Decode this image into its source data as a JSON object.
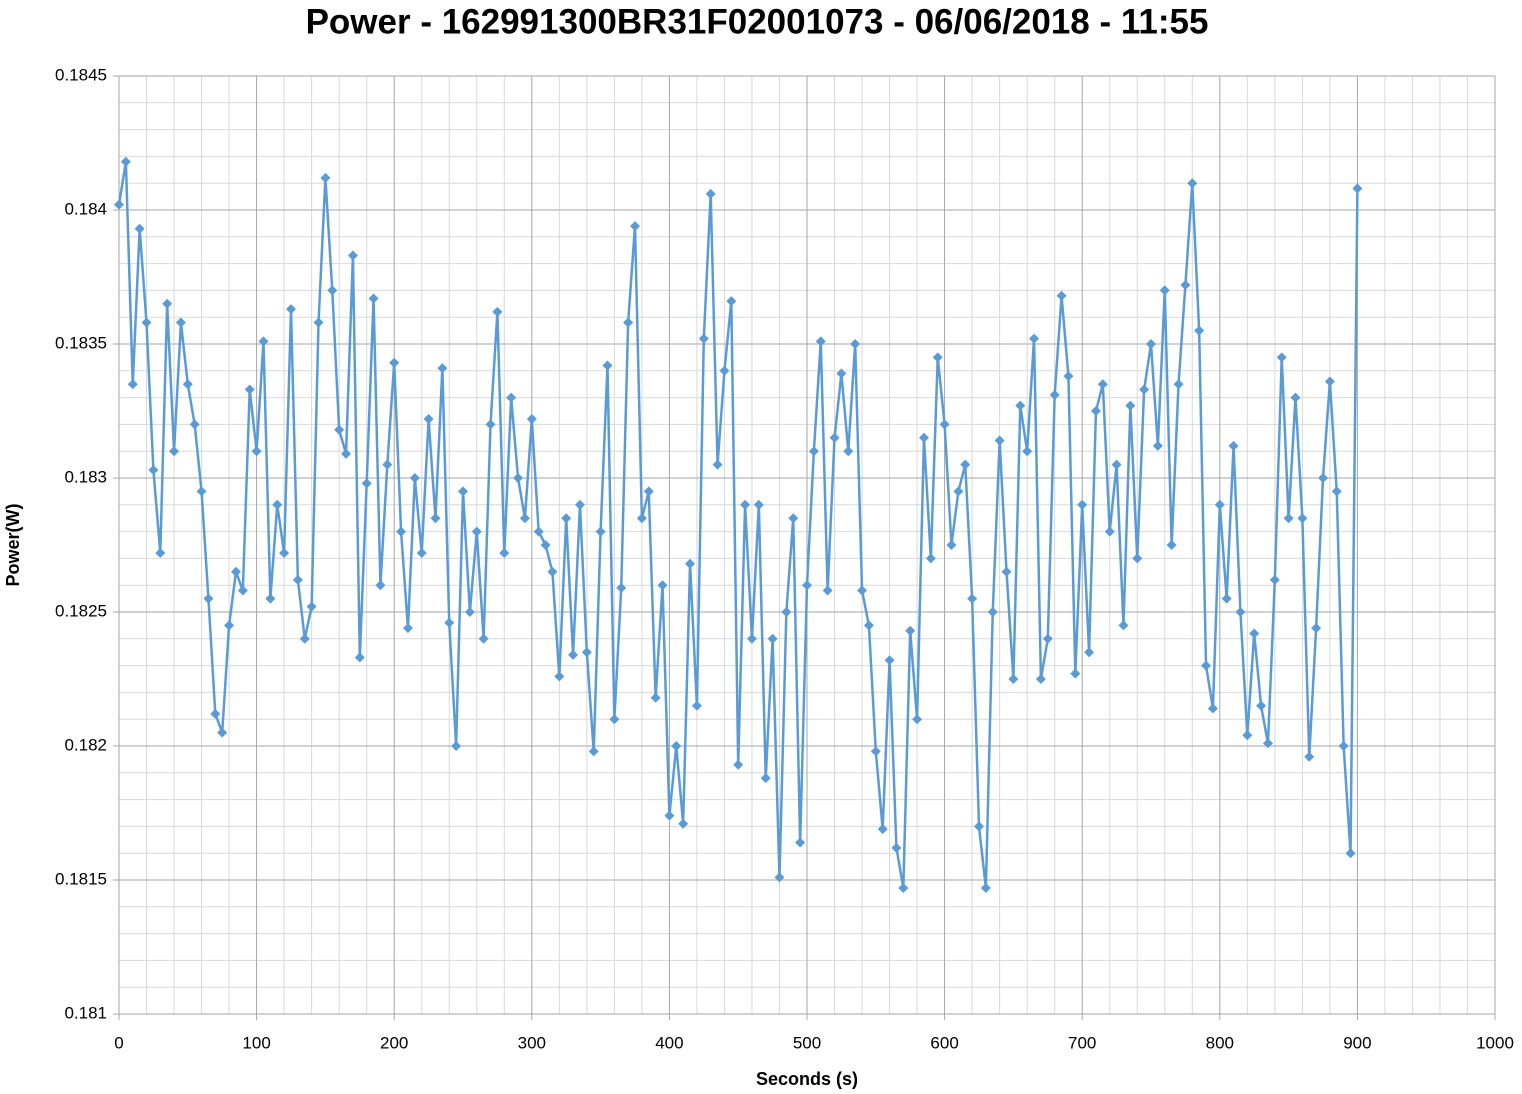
{
  "chart_data": {
    "type": "line",
    "title": "Power - 162991300BR31F02001073 - 06/06/2018 - 11:55",
    "x_label": "Seconds (s)",
    "y_label": "Power(W)",
    "xlim": [
      0,
      1000
    ],
    "xticks": [
      0,
      100,
      200,
      300,
      400,
      500,
      600,
      700,
      800,
      900,
      1000
    ],
    "ylim": [
      0.181,
      0.1845
    ],
    "yticks": [
      0.181,
      0.1815,
      0.182,
      0.1825,
      0.183,
      0.1835,
      0.184,
      0.1845
    ],
    "grid": true,
    "minor_grid": {
      "x": 5,
      "y": 5
    },
    "marker": "diamond",
    "x": [
      0,
      5,
      10,
      15,
      20,
      25,
      30,
      35,
      40,
      45,
      50,
      55,
      60,
      65,
      70,
      75,
      80,
      85,
      90,
      95,
      100,
      105,
      110,
      115,
      120,
      125,
      130,
      135,
      140,
      145,
      150,
      155,
      160,
      165,
      170,
      175,
      180,
      185,
      190,
      195,
      200,
      205,
      210,
      215,
      220,
      225,
      230,
      235,
      240,
      245,
      250,
      255,
      260,
      265,
      270,
      275,
      280,
      285,
      290,
      295,
      300,
      305,
      310,
      315,
      320,
      325,
      330,
      335,
      340,
      345,
      350,
      355,
      360,
      365,
      370,
      375,
      380,
      385,
      390,
      395,
      400,
      405,
      410,
      415,
      420,
      425,
      430,
      435,
      440,
      445,
      450,
      455,
      460,
      465,
      470,
      475,
      480,
      485,
      490,
      495,
      500,
      505,
      510,
      515,
      520,
      525,
      530,
      535,
      540,
      545,
      550,
      555,
      560,
      565,
      570,
      575,
      580,
      585,
      590,
      595,
      600,
      605,
      610,
      615,
      620,
      625,
      630,
      635,
      640,
      645,
      650,
      655,
      660,
      665,
      670,
      675,
      680,
      685,
      690,
      695,
      700,
      705,
      710,
      715,
      720,
      725,
      730,
      735,
      740,
      745,
      750,
      755,
      760,
      765,
      770,
      775,
      780,
      785,
      790,
      795,
      800,
      805,
      810,
      815,
      820,
      825,
      830,
      835,
      840,
      845,
      850,
      855,
      860,
      865,
      870,
      875,
      880,
      885,
      890,
      895,
      900
    ],
    "series": [
      {
        "name": "Power(W)",
        "color": "#5b9bd5",
        "values": [
          0.18402,
          0.18418,
          0.18335,
          0.18393,
          0.18358,
          0.18303,
          0.18272,
          0.18365,
          0.1831,
          0.18358,
          0.18335,
          0.1832,
          0.18295,
          0.18255,
          0.18212,
          0.18205,
          0.18245,
          0.18265,
          0.18258,
          0.18333,
          0.1831,
          0.18351,
          0.18255,
          0.1829,
          0.18272,
          0.18363,
          0.18262,
          0.1824,
          0.18252,
          0.18358,
          0.18412,
          0.1837,
          0.18318,
          0.18309,
          0.18383,
          0.18233,
          0.18298,
          0.18367,
          0.1826,
          0.18305,
          0.18343,
          0.1828,
          0.18244,
          0.183,
          0.18272,
          0.18322,
          0.18285,
          0.18341,
          0.18246,
          0.182,
          0.18295,
          0.1825,
          0.1828,
          0.1824,
          0.1832,
          0.18362,
          0.18272,
          0.1833,
          0.183,
          0.18285,
          0.18322,
          0.1828,
          0.18275,
          0.18265,
          0.18226,
          0.18285,
          0.18234,
          0.1829,
          0.18235,
          0.18198,
          0.1828,
          0.18342,
          0.1821,
          0.18259,
          0.18358,
          0.18394,
          0.18285,
          0.18295,
          0.18218,
          0.1826,
          0.18174,
          0.182,
          0.18171,
          0.18268,
          0.18215,
          0.18352,
          0.18406,
          0.18305,
          0.1834,
          0.18366,
          0.18193,
          0.1829,
          0.1824,
          0.1829,
          0.18188,
          0.1824,
          0.18151,
          0.1825,
          0.18285,
          0.18164,
          0.1826,
          0.1831,
          0.18351,
          0.18258,
          0.18315,
          0.18339,
          0.1831,
          0.1835,
          0.18258,
          0.18245,
          0.18198,
          0.18169,
          0.18232,
          0.18162,
          0.18147,
          0.18243,
          0.1821,
          0.18315,
          0.1827,
          0.18345,
          0.1832,
          0.18275,
          0.18295,
          0.18305,
          0.18255,
          0.1817,
          0.18147,
          0.1825,
          0.18314,
          0.18265,
          0.18225,
          0.18327,
          0.1831,
          0.18352,
          0.18225,
          0.1824,
          0.18331,
          0.18368,
          0.18338,
          0.18227,
          0.1829,
          0.18235,
          0.18325,
          0.18335,
          0.1828,
          0.18305,
          0.18245,
          0.18327,
          0.1827,
          0.18333,
          0.1835,
          0.18312,
          0.1837,
          0.18275,
          0.18335,
          0.18372,
          0.1841,
          0.18355,
          0.1823,
          0.18214,
          0.1829,
          0.18255,
          0.18312,
          0.1825,
          0.18204,
          0.18242,
          0.18215,
          0.18201,
          0.18262,
          0.18345,
          0.18285,
          0.1833,
          0.18285,
          0.18196,
          0.18244,
          0.183,
          0.18336,
          0.18295,
          0.182,
          0.1816,
          0.18408
        ]
      }
    ]
  }
}
